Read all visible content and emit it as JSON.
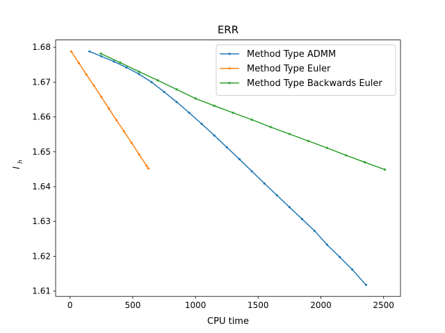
{
  "chart_data": {
    "type": "line",
    "title": "ERR",
    "xlabel": "CPU time",
    "ylabel": "l",
    "ylabel_subscript": "h",
    "xlim": [
      -115,
      2635
    ],
    "ylim": [
      1.6085,
      1.6821
    ],
    "xticks": [
      0,
      500,
      1000,
      1500,
      2000,
      2500
    ],
    "yticks": [
      1.61,
      1.62,
      1.63,
      1.64,
      1.65,
      1.66,
      1.67,
      1.68
    ],
    "grid": false,
    "legend": "upper right",
    "series": [
      {
        "name": "Method Type ADMM",
        "color": "#1f77b4",
        "x": [
          155,
          250,
          350,
          450,
          550,
          650,
          750,
          850,
          950,
          1050,
          1150,
          1250,
          1350,
          1450,
          1550,
          1650,
          1750,
          1850,
          1950,
          2050,
          2150,
          2250,
          2360
        ],
        "values": [
          1.6788,
          1.6774,
          1.6759,
          1.6742,
          1.6723,
          1.67,
          1.6672,
          1.6643,
          1.6612,
          1.658,
          1.6547,
          1.6513,
          1.6479,
          1.6444,
          1.6409,
          1.6375,
          1.6341,
          1.6307,
          1.6273,
          1.6233,
          1.6198,
          1.6162,
          1.6118
        ]
      },
      {
        "name": "Method Type Euler",
        "color": "#ff7f0e",
        "x": [
          10,
          70,
          130,
          190,
          250,
          310,
          370,
          430,
          490,
          550,
          610,
          625
        ],
        "values": [
          1.6788,
          1.6755,
          1.6722,
          1.669,
          1.6657,
          1.6624,
          1.6591,
          1.6559,
          1.6526,
          1.6493,
          1.646,
          1.6452
        ]
      },
      {
        "name": "Method Type Backwards Euler",
        "color": "#2ca02c",
        "x": [
          245,
          400,
          550,
          700,
          850,
          1000,
          1150,
          1300,
          1450,
          1600,
          1750,
          1900,
          2050,
          2200,
          2350,
          2510
        ],
        "values": [
          1.6782,
          1.6756,
          1.673,
          1.6705,
          1.6679,
          1.6653,
          1.6632,
          1.6612,
          1.6592,
          1.6571,
          1.6551,
          1.6531,
          1.6511,
          1.649,
          1.647,
          1.6449
        ]
      }
    ]
  }
}
